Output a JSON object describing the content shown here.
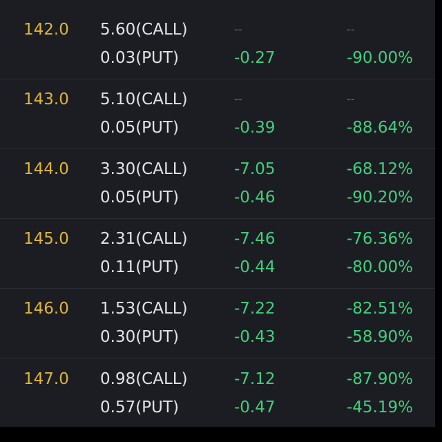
{
  "rows": [
    {
      "strike": "142.0",
      "call": {
        "price": "5.60(CALL)",
        "change": "--",
        "percent": "--"
      },
      "put": {
        "price": "0.03(PUT)",
        "change": "-0.27",
        "percent": "-90.00%"
      }
    },
    {
      "strike": "143.0",
      "call": {
        "price": "5.10(CALL)",
        "change": "--",
        "percent": "--"
      },
      "put": {
        "price": "0.05(PUT)",
        "change": "-0.39",
        "percent": "-88.64%"
      }
    },
    {
      "strike": "144.0",
      "call": {
        "price": "3.30(CALL)",
        "change": "-7.05",
        "percent": "-68.12%"
      },
      "put": {
        "price": "0.05(PUT)",
        "change": "-0.46",
        "percent": "-90.20%"
      }
    },
    {
      "strike": "145.0",
      "call": {
        "price": "2.31(CALL)",
        "change": "-7.46",
        "percent": "-76.36%"
      },
      "put": {
        "price": "0.11(PUT)",
        "change": "-0.44",
        "percent": "-80.00%"
      }
    },
    {
      "strike": "146.0",
      "call": {
        "price": "1.53(CALL)",
        "change": "-7.22",
        "percent": "-82.51%"
      },
      "put": {
        "price": "0.30(PUT)",
        "change": "-0.43",
        "percent": "-58.90%"
      }
    },
    {
      "strike": "147.0",
      "call": {
        "price": "0.98(CALL)",
        "change": "-7.12",
        "percent": "-87.90%"
      },
      "put": {
        "price": "0.57(PUT)",
        "change": "-0.47",
        "percent": "-45.19%"
      }
    }
  ],
  "colors": {
    "background": "#1c1d22",
    "strike": "#e0b43a",
    "price": "#e4e4e6",
    "change_negative": "#3fd07f",
    "placeholder": "#6d6f78"
  }
}
